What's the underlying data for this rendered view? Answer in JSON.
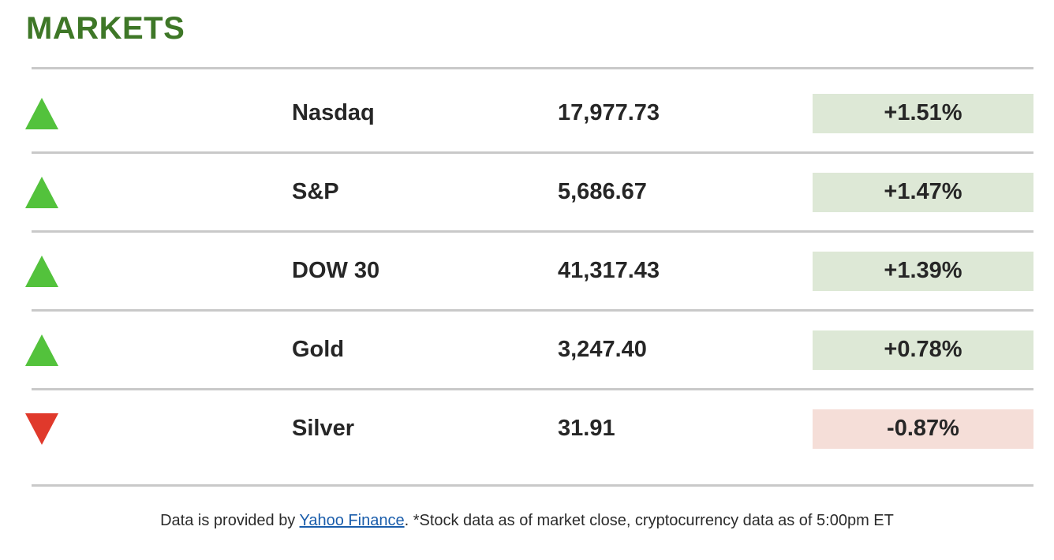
{
  "header": {
    "title": "MARKETS"
  },
  "markets": {
    "rows": [
      {
        "name": "Nasdaq",
        "value": "17,977.73",
        "change": "+1.51%",
        "direction": "up"
      },
      {
        "name": "S&P",
        "value": "5,686.67",
        "change": "+1.47%",
        "direction": "up"
      },
      {
        "name": "DOW 30",
        "value": "41,317.43",
        "change": "+1.39%",
        "direction": "up"
      },
      {
        "name": "Gold",
        "value": "3,247.40",
        "change": "+0.78%",
        "direction": "up"
      },
      {
        "name": "Silver",
        "value": "31.91",
        "change": "-0.87%",
        "direction": "down"
      }
    ]
  },
  "footer": {
    "prefix": "Data is provided by ",
    "link_text": "Yahoo Finance",
    "suffix": ". *Stock data as of market close, cryptocurrency data as of 5:00pm ET"
  },
  "colors": {
    "title_green": "#3e7727",
    "up_triangle": "#53c23c",
    "down_triangle": "#e0392b",
    "up_badge_bg": "#dde8d6",
    "down_badge_bg": "#f5ded8",
    "divider_gray": "#c9c9c9",
    "link_blue": "#1a5dab",
    "text_dark": "#262626"
  },
  "chart_data": {
    "type": "table",
    "title": "MARKETS",
    "columns": [
      "direction",
      "name",
      "last_value",
      "percent_change"
    ],
    "rows": [
      [
        "up",
        "Nasdaq",
        17977.73,
        1.51
      ],
      [
        "up",
        "S&P",
        5686.67,
        1.47
      ],
      [
        "up",
        "DOW 30",
        41317.43,
        1.39
      ],
      [
        "up",
        "Gold",
        3247.4,
        0.78
      ],
      [
        "down",
        "Silver",
        31.91,
        -0.87
      ]
    ]
  }
}
